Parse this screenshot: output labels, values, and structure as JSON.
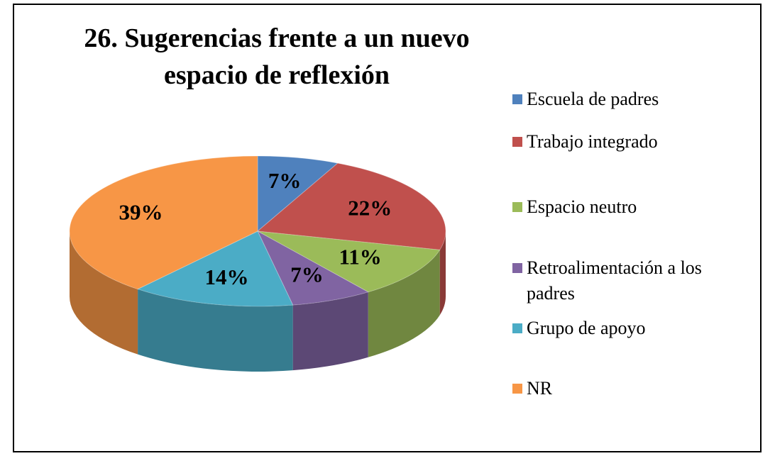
{
  "chart_data": {
    "type": "pie",
    "title": "26. Sugerencias frente a un nuevo espacio de reflexión",
    "categories": [
      "Escuela de padres",
      "Trabajo integrado",
      "Espacio neutro",
      "Retroalimentación a los padres",
      "Grupo de apoyo",
      "NR"
    ],
    "values": [
      7,
      22,
      11,
      7,
      14,
      39
    ],
    "value_labels": [
      "7%",
      "22%",
      "11%",
      "7%",
      "14%",
      "39%"
    ],
    "colors": [
      "#4f81bd",
      "#c0504d",
      "#9bbb59",
      "#8064a2",
      "#4bacc6",
      "#f79646"
    ],
    "legend": "right"
  }
}
